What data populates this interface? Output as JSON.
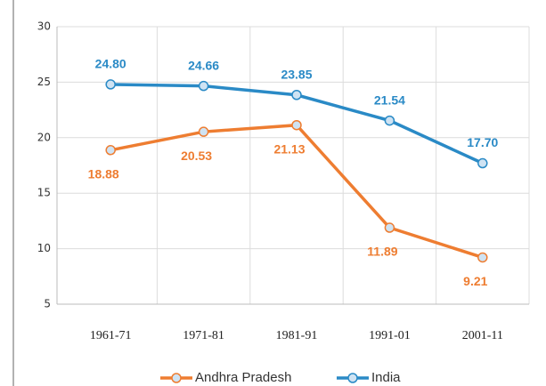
{
  "chart_data": {
    "type": "line",
    "categories": [
      "1961-71",
      "1971-81",
      "1981-91",
      "1991-01",
      "2001-11"
    ],
    "series": [
      {
        "name": "Andhra Pradesh",
        "color": "#ee7d31",
        "values": [
          18.88,
          20.53,
          21.13,
          11.89,
          9.21
        ],
        "value_labels": [
          "18.88",
          "20.53",
          "21.13",
          "11.89",
          "9.21"
        ]
      },
      {
        "name": "India",
        "color": "#2a8ac6",
        "values": [
          24.8,
          24.66,
          23.85,
          21.54,
          17.7
        ],
        "value_labels": [
          "24.80",
          "24.66",
          "23.85",
          "21.54",
          "17.70"
        ]
      }
    ],
    "ylim": [
      5,
      30
    ],
    "yticks": [
      5,
      10,
      15,
      20,
      25,
      30
    ],
    "grid": true,
    "legend": "bottom"
  }
}
